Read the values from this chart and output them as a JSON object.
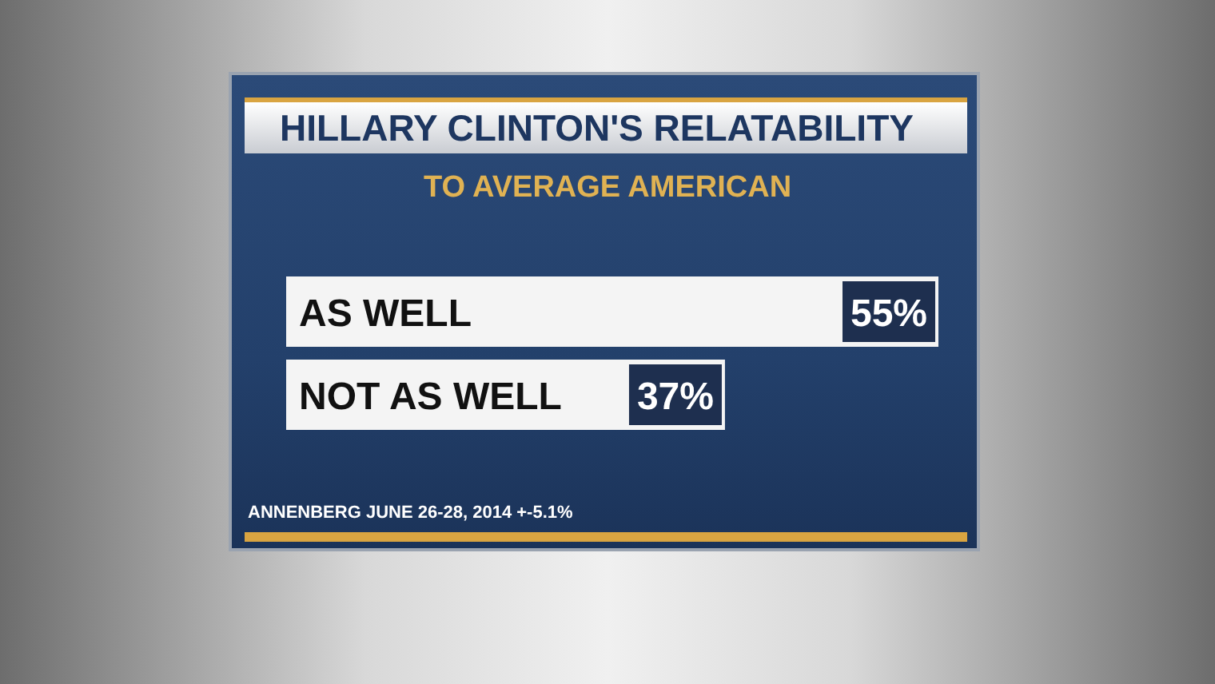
{
  "chart_data": {
    "type": "bar",
    "orientation": "horizontal",
    "title": "HILLARY CLINTON'S RELATABILITY",
    "subtitle": "TO AVERAGE AMERICAN",
    "categories": [
      "AS WELL",
      "NOT AS WELL"
    ],
    "series": [
      {
        "color": "#f4f4f4",
        "values": [
          55,
          37
        ],
        "value_labels": [
          "55%",
          "37%"
        ]
      }
    ],
    "annotations": [
      "ANNENBERG JUNE 26-28, 2014 +-5.1%"
    ]
  }
}
